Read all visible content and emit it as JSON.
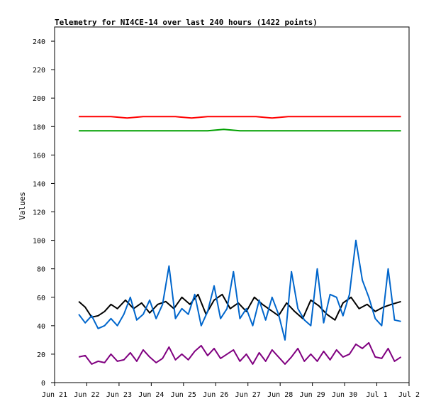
{
  "chart_data": {
    "type": "line",
    "title": "Telemetry for NI4CE-14 over last 240 hours (1422 points)",
    "xlabel": "",
    "ylabel": "Values",
    "xlim": [
      0,
      11
    ],
    "ylim": [
      0,
      250
    ],
    "yticks": [
      0,
      20,
      40,
      60,
      80,
      100,
      120,
      140,
      160,
      180,
      200,
      220,
      240
    ],
    "xticks": [
      "Jun 21",
      "Jun 22",
      "Jun 23",
      "Jun 24",
      "Jun 25",
      "Jun 26",
      "Jun 27",
      "Jun 28",
      "Jun 29",
      "Jun 30",
      "Jul 1",
      "Jul 2"
    ],
    "grid": false,
    "legend": "none",
    "series": [
      {
        "color": "#ff0000",
        "x": [
          0.75,
          1.25,
          1.75,
          2.25,
          2.75,
          3.25,
          3.75,
          4.25,
          4.75,
          5.25,
          5.75,
          6.25,
          6.75,
          7.25,
          7.75,
          8.25,
          8.75,
          9.25,
          9.75,
          10.25,
          10.75
        ],
        "y": [
          187,
          187,
          187,
          186,
          187,
          187,
          187,
          186,
          187,
          187,
          187,
          187,
          186,
          187,
          187,
          187,
          187,
          187,
          187,
          187,
          187
        ]
      },
      {
        "color": "#00a000",
        "x": [
          0.75,
          1.25,
          1.75,
          2.25,
          2.75,
          3.25,
          3.75,
          4.25,
          4.75,
          5.25,
          5.75,
          6.25,
          6.75,
          7.25,
          7.75,
          8.25,
          8.75,
          9.25,
          9.75,
          10.25,
          10.75
        ],
        "y": [
          177,
          177,
          177,
          177,
          177,
          177,
          177,
          177,
          177,
          178,
          177,
          177,
          177,
          177,
          177,
          177,
          177,
          177,
          177,
          177,
          177
        ]
      },
      {
        "color": "#000000",
        "x": [
          0.75,
          0.95,
          1.15,
          1.35,
          1.55,
          1.75,
          1.95,
          2.2,
          2.45,
          2.7,
          2.95,
          3.2,
          3.45,
          3.7,
          3.95,
          4.2,
          4.45,
          4.7,
          4.95,
          5.2,
          5.45,
          5.7,
          5.95,
          6.2,
          6.45,
          6.7,
          6.95,
          7.2,
          7.45,
          7.7,
          7.95,
          8.2,
          8.45,
          8.7,
          8.95,
          9.2,
          9.45,
          9.7,
          9.95,
          10.2,
          10.45,
          10.75
        ],
        "y": [
          57,
          53,
          46,
          47,
          50,
          55,
          52,
          58,
          52,
          56,
          49,
          55,
          57,
          52,
          60,
          55,
          62,
          48,
          58,
          62,
          52,
          56,
          50,
          60,
          55,
          51,
          47,
          56,
          50,
          45,
          58,
          54,
          48,
          44,
          56,
          60,
          52,
          55,
          50,
          53,
          55,
          57
        ]
      },
      {
        "color": "#0066cc",
        "x": [
          0.75,
          0.95,
          1.15,
          1.35,
          1.55,
          1.75,
          1.95,
          2.15,
          2.35,
          2.55,
          2.75,
          2.95,
          3.15,
          3.35,
          3.55,
          3.75,
          3.95,
          4.15,
          4.35,
          4.55,
          4.75,
          4.95,
          5.15,
          5.35,
          5.55,
          5.75,
          5.95,
          6.15,
          6.35,
          6.55,
          6.75,
          6.95,
          7.15,
          7.35,
          7.55,
          7.75,
          7.95,
          8.15,
          8.35,
          8.55,
          8.75,
          8.95,
          9.15,
          9.35,
          9.55,
          9.75,
          9.95,
          10.15,
          10.35,
          10.55,
          10.75
        ],
        "y": [
          48,
          42,
          47,
          38,
          40,
          45,
          40,
          48,
          60,
          44,
          48,
          58,
          45,
          55,
          82,
          45,
          52,
          48,
          62,
          40,
          50,
          68,
          45,
          52,
          78,
          45,
          52,
          40,
          58,
          44,
          60,
          48,
          30,
          78,
          52,
          44,
          40,
          80,
          42,
          62,
          60,
          47,
          62,
          100,
          72,
          60,
          45,
          40,
          80,
          44,
          43
        ]
      },
      {
        "color": "#800080",
        "x": [
          0.75,
          0.95,
          1.15,
          1.35,
          1.55,
          1.75,
          1.95,
          2.15,
          2.35,
          2.55,
          2.75,
          2.95,
          3.15,
          3.35,
          3.55,
          3.75,
          3.95,
          4.15,
          4.35,
          4.55,
          4.75,
          4.95,
          5.15,
          5.35,
          5.55,
          5.75,
          5.95,
          6.15,
          6.35,
          6.55,
          6.75,
          6.95,
          7.15,
          7.35,
          7.55,
          7.75,
          7.95,
          8.15,
          8.35,
          8.55,
          8.75,
          8.95,
          9.15,
          9.35,
          9.55,
          9.75,
          9.95,
          10.15,
          10.35,
          10.55,
          10.75
        ],
        "y": [
          18,
          19,
          13,
          15,
          14,
          20,
          15,
          16,
          21,
          15,
          23,
          18,
          14,
          17,
          25,
          16,
          20,
          16,
          22,
          26,
          19,
          24,
          17,
          20,
          23,
          15,
          20,
          13,
          21,
          15,
          23,
          18,
          13,
          18,
          24,
          15,
          20,
          15,
          22,
          16,
          23,
          18,
          20,
          27,
          24,
          28,
          18,
          17,
          24,
          15,
          18
        ]
      }
    ]
  }
}
